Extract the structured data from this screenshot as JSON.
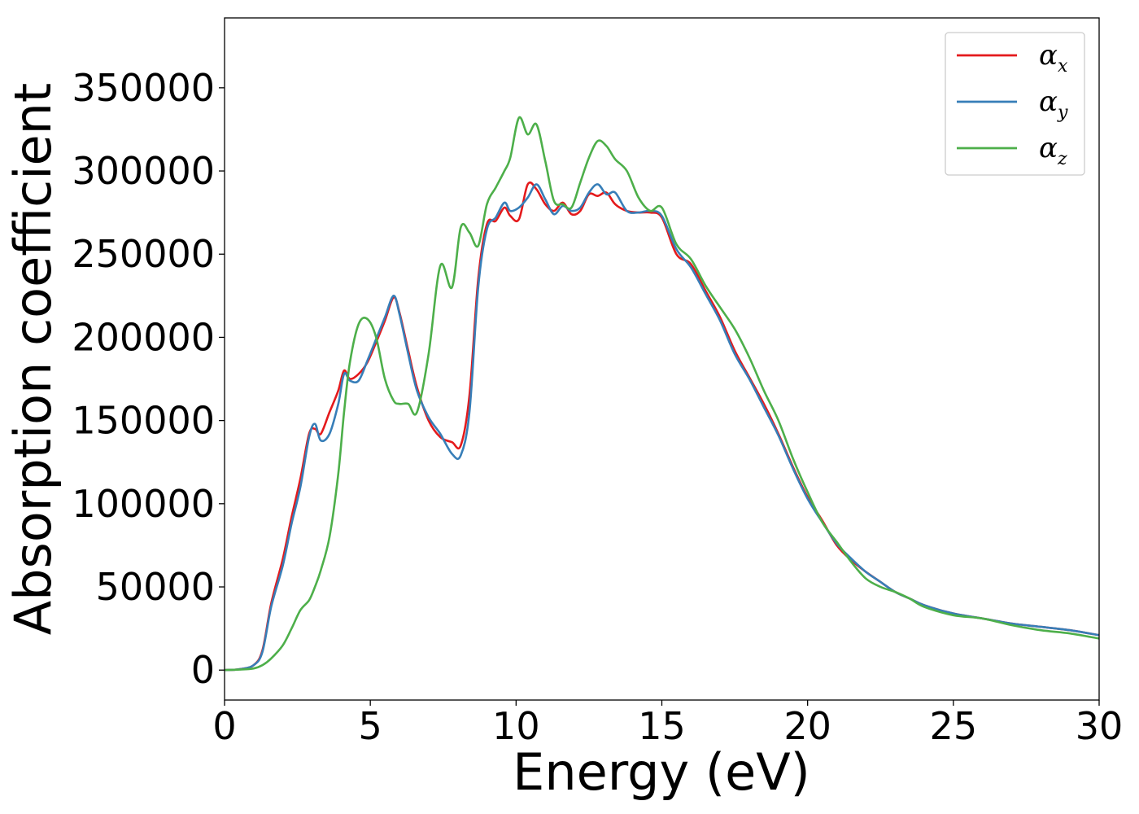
{
  "chart_data": {
    "type": "line",
    "xlabel": "Energy (eV)",
    "ylabel": "Absorption coefficient",
    "xlim": [
      0,
      30
    ],
    "ylim": [
      -18000,
      392000
    ],
    "xticks": [
      0,
      5,
      10,
      15,
      20,
      25,
      30
    ],
    "xtick_labels": [
      "0",
      "5",
      "10",
      "15",
      "20",
      "25",
      "30"
    ],
    "yticks": [
      0,
      50000,
      100000,
      150000,
      200000,
      250000,
      300000,
      350000
    ],
    "ytick_labels": [
      "0",
      "50000",
      "100000",
      "150000",
      "200000",
      "250000",
      "300000",
      "350000"
    ],
    "grid": false,
    "legend_position": "top-right",
    "series": [
      {
        "name": "αx",
        "legend_symbol": "α",
        "legend_sub": "x",
        "color": "#e41a1c",
        "x": [
          0,
          0.5,
          1.0,
          1.3,
          1.6,
          2.0,
          2.3,
          2.6,
          2.9,
          3.1,
          3.3,
          3.6,
          3.9,
          4.1,
          4.3,
          4.6,
          4.9,
          5.2,
          5.5,
          5.8,
          6.0,
          6.3,
          6.6,
          7.0,
          7.4,
          7.8,
          8.1,
          8.4,
          8.7,
          9.0,
          9.3,
          9.6,
          9.8,
          10.1,
          10.4,
          10.7,
          11.0,
          11.3,
          11.6,
          11.9,
          12.2,
          12.5,
          12.8,
          13.1,
          13.4,
          13.8,
          14.2,
          14.6,
          15.0,
          15.5,
          16.0,
          16.5,
          17.0,
          17.5,
          18.0,
          18.5,
          19.0,
          19.5,
          20.0,
          20.5,
          21.0,
          21.5,
          22.0,
          22.5,
          23.0,
          23.5,
          24.0,
          25.0,
          26.0,
          27.0,
          28.0,
          29.0,
          30.0
        ],
        "y": [
          0,
          500,
          3000,
          12000,
          40000,
          67000,
          92000,
          115000,
          142000,
          145000,
          142000,
          155000,
          168000,
          180000,
          175000,
          178000,
          185000,
          197000,
          210000,
          224000,
          215000,
          192000,
          170000,
          150000,
          140000,
          137000,
          135000,
          165000,
          235000,
          268000,
          270000,
          278000,
          273000,
          271000,
          292000,
          289000,
          280000,
          276000,
          281000,
          274000,
          276000,
          286000,
          285000,
          287000,
          280000,
          276000,
          275000,
          275000,
          272000,
          250000,
          244000,
          228000,
          212000,
          192000,
          176000,
          160000,
          142000,
          122000,
          104000,
          90000,
          75000,
          66000,
          59000,
          53000,
          47000,
          43000,
          39000,
          34000,
          31000,
          28000,
          26000,
          24000,
          21000
        ]
      },
      {
        "name": "αy",
        "legend_symbol": "α",
        "legend_sub": "y",
        "color": "#377eb8",
        "x": [
          0,
          0.5,
          1.0,
          1.3,
          1.6,
          2.0,
          2.3,
          2.6,
          2.9,
          3.1,
          3.3,
          3.6,
          3.9,
          4.1,
          4.3,
          4.6,
          4.9,
          5.2,
          5.5,
          5.8,
          6.0,
          6.3,
          6.6,
          7.0,
          7.4,
          7.8,
          8.1,
          8.4,
          8.7,
          9.0,
          9.3,
          9.6,
          9.8,
          10.1,
          10.4,
          10.7,
          11.0,
          11.3,
          11.6,
          11.9,
          12.2,
          12.5,
          12.8,
          13.1,
          13.4,
          13.8,
          14.2,
          14.6,
          15.0,
          15.5,
          16.0,
          16.5,
          17.0,
          17.5,
          18.0,
          18.5,
          19.0,
          19.5,
          20.0,
          20.5,
          21.0,
          21.5,
          22.0,
          22.5,
          23.0,
          23.5,
          24.0,
          25.0,
          26.0,
          27.0,
          28.0,
          29.0,
          30.0
        ],
        "y": [
          0,
          500,
          3000,
          11000,
          38000,
          63000,
          88000,
          110000,
          140000,
          148000,
          138000,
          142000,
          160000,
          178000,
          174000,
          174000,
          186000,
          199000,
          212000,
          225000,
          214000,
          190000,
          168000,
          152000,
          142000,
          130000,
          129000,
          155000,
          230000,
          265000,
          272000,
          281000,
          276000,
          278000,
          284000,
          292000,
          283000,
          274000,
          279000,
          276000,
          278000,
          287000,
          292000,
          286000,
          287000,
          276000,
          275000,
          276000,
          273000,
          253000,
          242000,
          226000,
          210000,
          190000,
          175000,
          158000,
          141000,
          121000,
          103000,
          89000,
          76000,
          67000,
          59000,
          53000,
          47000,
          43000,
          39000,
          34000,
          31000,
          28000,
          26000,
          24000,
          21000
        ]
      },
      {
        "name": "αz",
        "legend_symbol": "α",
        "legend_sub": "z",
        "color": "#4daf4a",
        "x": [
          0,
          0.5,
          1.0,
          1.3,
          1.6,
          2.0,
          2.3,
          2.6,
          2.9,
          3.1,
          3.3,
          3.6,
          3.9,
          4.1,
          4.3,
          4.6,
          4.9,
          5.2,
          5.5,
          5.8,
          6.0,
          6.3,
          6.6,
          7.0,
          7.4,
          7.8,
          8.1,
          8.4,
          8.7,
          9.0,
          9.3,
          9.6,
          9.8,
          10.1,
          10.4,
          10.7,
          11.0,
          11.3,
          11.6,
          11.9,
          12.2,
          12.5,
          12.8,
          13.1,
          13.4,
          13.8,
          14.2,
          14.6,
          15.0,
          15.5,
          16.0,
          16.5,
          17.0,
          17.5,
          18.0,
          18.5,
          19.0,
          19.5,
          20.0,
          20.5,
          21.0,
          21.5,
          22.0,
          22.5,
          23.0,
          23.5,
          24.0,
          25.0,
          26.0,
          27.0,
          28.0,
          29.0,
          30.0
        ],
        "y": [
          0,
          300,
          1000,
          3000,
          7000,
          15000,
          25000,
          36000,
          42000,
          50000,
          60000,
          80000,
          118000,
          155000,
          185000,
          208000,
          211000,
          200000,
          175000,
          162000,
          160000,
          160000,
          155000,
          190000,
          243000,
          230000,
          266000,
          263000,
          255000,
          280000,
          290000,
          300000,
          308000,
          332000,
          322000,
          328000,
          306000,
          282000,
          280000,
          278000,
          293000,
          308000,
          318000,
          315000,
          307000,
          300000,
          284000,
          276000,
          278000,
          256000,
          247000,
          231000,
          218000,
          205000,
          188000,
          168000,
          150000,
          127000,
          107000,
          89000,
          77000,
          65000,
          55000,
          50000,
          47000,
          43000,
          38000,
          33000,
          31000,
          27000,
          24000,
          22000,
          19000
        ]
      }
    ]
  }
}
